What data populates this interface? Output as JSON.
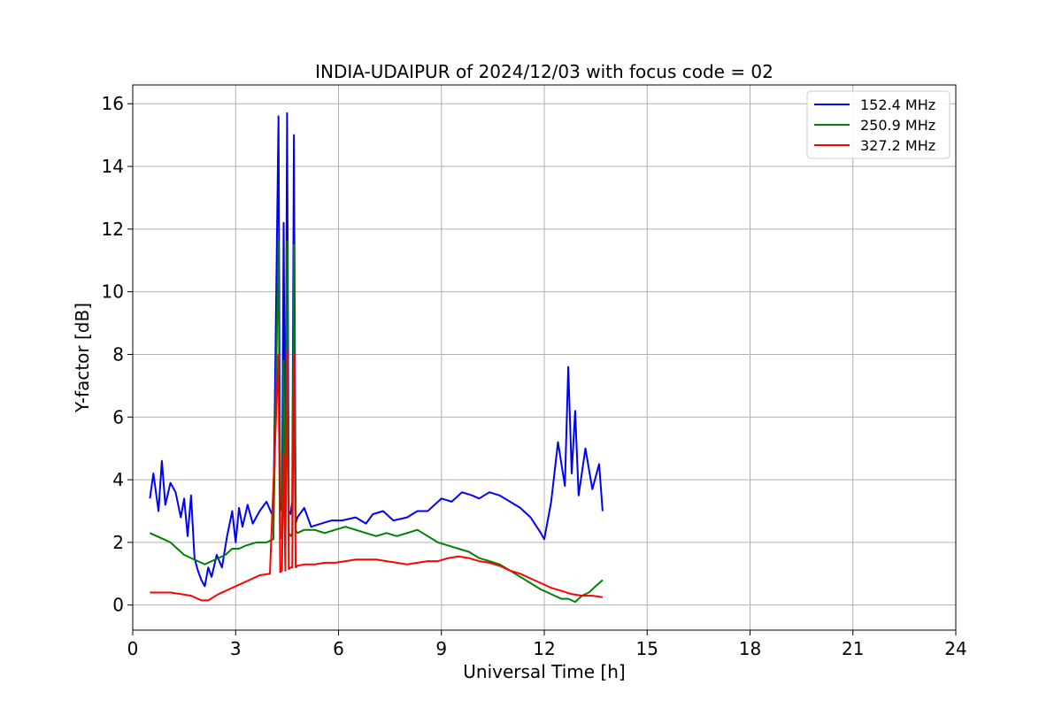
{
  "chart_data": {
    "type": "line",
    "title": "INDIA-UDAIPUR of 2024/12/03 with focus code = 02",
    "xlabel": "Universal Time [h]",
    "ylabel": "Y-factor [dB]",
    "xlim": [
      0,
      24
    ],
    "ylim": [
      -0.8,
      16.6
    ],
    "xticks": [
      0,
      3,
      6,
      9,
      12,
      15,
      18,
      21,
      24
    ],
    "yticks": [
      0,
      2,
      4,
      6,
      8,
      10,
      12,
      14,
      16
    ],
    "grid": true,
    "legend_position": "top-right",
    "series": [
      {
        "name": "152.4 MHz",
        "color": "#0000ff",
        "x": [
          0.5,
          0.6,
          0.75,
          0.85,
          0.95,
          1.1,
          1.25,
          1.4,
          1.5,
          1.6,
          1.7,
          1.8,
          1.9,
          2.0,
          2.1,
          2.2,
          2.3,
          2.45,
          2.6,
          2.75,
          2.9,
          3.0,
          3.1,
          3.2,
          3.35,
          3.5,
          3.7,
          3.9,
          4.1,
          4.25,
          4.3,
          4.35,
          4.4,
          4.45,
          4.5,
          4.55,
          4.6,
          4.65,
          4.7,
          4.75,
          4.8,
          5.0,
          5.2,
          5.5,
          5.8,
          6.1,
          6.5,
          6.8,
          7.0,
          7.3,
          7.6,
          8.0,
          8.3,
          8.6,
          9.0,
          9.3,
          9.6,
          9.9,
          10.1,
          10.4,
          10.7,
          11.0,
          11.3,
          11.6,
          11.9,
          12.0,
          12.2,
          12.4,
          12.6,
          12.7,
          12.8,
          12.9,
          13.0,
          13.2,
          13.4,
          13.6,
          13.7
        ],
        "values": [
          3.4,
          4.2,
          3.0,
          4.6,
          3.2,
          3.9,
          3.6,
          2.8,
          3.4,
          2.2,
          3.5,
          1.5,
          1.1,
          0.8,
          0.6,
          1.2,
          0.9,
          1.6,
          1.2,
          2.2,
          3.0,
          2.0,
          3.1,
          2.5,
          3.2,
          2.6,
          3.0,
          3.3,
          2.8,
          15.6,
          3.0,
          3.2,
          12.2,
          3.1,
          15.7,
          3.0,
          2.9,
          3.3,
          15.0,
          2.6,
          2.8,
          3.1,
          2.5,
          2.6,
          2.7,
          2.7,
          2.8,
          2.6,
          2.9,
          3.0,
          2.7,
          2.8,
          3.0,
          3.0,
          3.4,
          3.3,
          3.6,
          3.5,
          3.4,
          3.6,
          3.5,
          3.3,
          3.1,
          2.8,
          2.3,
          2.1,
          3.3,
          5.2,
          3.8,
          7.6,
          4.2,
          6.2,
          3.5,
          5.0,
          3.7,
          4.5,
          3.0
        ]
      },
      {
        "name": "250.9 MHz",
        "color": "#008000",
        "x": [
          0.5,
          0.7,
          0.9,
          1.1,
          1.3,
          1.5,
          1.7,
          1.9,
          2.1,
          2.3,
          2.5,
          2.7,
          2.9,
          3.1,
          3.3,
          3.6,
          3.9,
          4.1,
          4.25,
          4.3,
          4.35,
          4.4,
          4.45,
          4.5,
          4.55,
          4.6,
          4.65,
          4.7,
          4.75,
          4.8,
          5.0,
          5.3,
          5.6,
          5.9,
          6.2,
          6.5,
          6.8,
          7.1,
          7.4,
          7.7,
          8.0,
          8.3,
          8.6,
          8.9,
          9.2,
          9.5,
          9.8,
          10.1,
          10.4,
          10.7,
          11.0,
          11.3,
          11.6,
          11.9,
          12.1,
          12.3,
          12.5,
          12.7,
          12.9,
          13.1,
          13.3,
          13.5,
          13.7
        ],
        "values": [
          2.3,
          2.2,
          2.1,
          2.0,
          1.8,
          1.6,
          1.5,
          1.4,
          1.3,
          1.4,
          1.5,
          1.6,
          1.8,
          1.8,
          1.9,
          2.0,
          2.0,
          2.1,
          11.6,
          2.1,
          2.2,
          7.8,
          2.2,
          11.6,
          2.3,
          2.2,
          2.3,
          11.5,
          2.4,
          2.3,
          2.4,
          2.4,
          2.3,
          2.4,
          2.5,
          2.4,
          2.3,
          2.2,
          2.3,
          2.2,
          2.3,
          2.4,
          2.2,
          2.0,
          1.9,
          1.8,
          1.7,
          1.5,
          1.4,
          1.3,
          1.1,
          0.9,
          0.7,
          0.5,
          0.4,
          0.3,
          0.2,
          0.2,
          0.1,
          0.3,
          0.4,
          0.6,
          0.8
        ]
      },
      {
        "name": "327.2 MHz",
        "color": "#ff0000",
        "x": [
          0.5,
          0.8,
          1.1,
          1.4,
          1.7,
          2.0,
          2.2,
          2.5,
          2.8,
          3.1,
          3.4,
          3.7,
          4.0,
          4.25,
          4.3,
          4.35,
          4.4,
          4.45,
          4.5,
          4.55,
          4.6,
          4.65,
          4.7,
          4.75,
          4.8,
          5.0,
          5.3,
          5.6,
          5.9,
          6.2,
          6.5,
          6.8,
          7.1,
          7.4,
          7.7,
          8.0,
          8.3,
          8.6,
          8.9,
          9.2,
          9.5,
          9.8,
          10.1,
          10.4,
          10.7,
          11.0,
          11.3,
          11.6,
          11.9,
          12.2,
          12.5,
          12.8,
          13.1,
          13.4,
          13.7
        ],
        "values": [
          0.4,
          0.4,
          0.4,
          0.35,
          0.3,
          0.15,
          0.15,
          0.35,
          0.5,
          0.65,
          0.8,
          0.95,
          1.0,
          8.0,
          1.05,
          1.1,
          4.8,
          1.1,
          8.1,
          1.15,
          1.2,
          1.2,
          8.0,
          1.2,
          1.25,
          1.3,
          1.3,
          1.35,
          1.35,
          1.4,
          1.45,
          1.45,
          1.45,
          1.4,
          1.35,
          1.3,
          1.35,
          1.4,
          1.4,
          1.5,
          1.55,
          1.5,
          1.4,
          1.35,
          1.25,
          1.1,
          1.0,
          0.85,
          0.7,
          0.55,
          0.45,
          0.35,
          0.3,
          0.3,
          0.25
        ]
      }
    ]
  }
}
